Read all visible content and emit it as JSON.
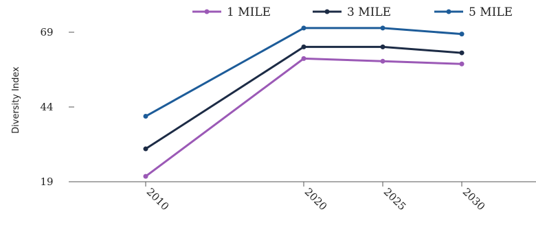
{
  "chart_data": {
    "type": "line",
    "title": "",
    "xlabel": "",
    "ylabel": "Diversity Index",
    "x": [
      "2010",
      "2020",
      "2025",
      "2030"
    ],
    "x_numeric": [
      2010,
      2020,
      2025,
      2030
    ],
    "xlim": [
      2010,
      2030
    ],
    "ylim": [
      19,
      69
    ],
    "yticks": [
      "19",
      "44",
      "69"
    ],
    "grid": false,
    "legend_position": "top",
    "series": [
      {
        "name": "1 MILE",
        "color": "#9b59b6",
        "values": [
          20.8,
          60.2,
          59.3,
          58.4
        ]
      },
      {
        "name": "3 MILE",
        "color": "#1c2b45",
        "values": [
          30.0,
          64.1,
          64.1,
          62.1
        ]
      },
      {
        "name": "5 MILE",
        "color": "#1d5c99",
        "values": [
          40.9,
          70.4,
          70.4,
          68.4
        ]
      }
    ]
  }
}
